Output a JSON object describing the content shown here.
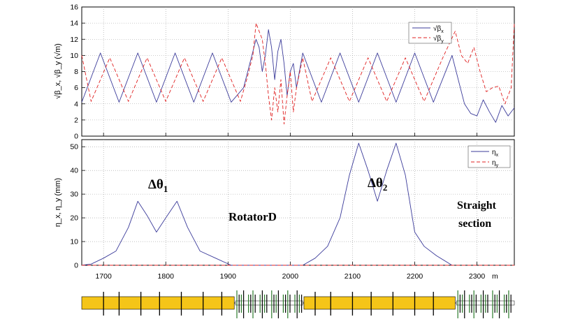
{
  "chart_data": [
    {
      "type": "line",
      "panel": "top",
      "ylabel": "√β_x, √β_y (√m)",
      "xlim": [
        1665,
        2360
      ],
      "ylim": [
        0,
        16
      ],
      "yticks": [
        "0",
        "2",
        "4",
        "6",
        "8",
        "10",
        "12",
        "14",
        "16"
      ],
      "grid": true,
      "legend_position": "top-right",
      "colors": {
        "bx": "#3b3b9a",
        "by": "#e02020"
      },
      "series": [
        {
          "name": "√β_x",
          "key": "bx",
          "style": "solid",
          "x": [
            1665,
            1695,
            1725,
            1755,
            1785,
            1815,
            1845,
            1875,
            1905,
            1925,
            1935,
            1945,
            1950,
            1955,
            1960,
            1965,
            1970,
            1975,
            1980,
            1985,
            1990,
            1995,
            2000,
            2005,
            2010,
            2020,
            2050,
            2080,
            2110,
            2140,
            2170,
            2200,
            2230,
            2260,
            2270,
            2280,
            2290,
            2300,
            2310,
            2320,
            2330,
            2340,
            2350,
            2360
          ],
          "y": [
            4.2,
            10.3,
            4.2,
            10.3,
            4.2,
            10.3,
            4.2,
            10.3,
            4.2,
            6,
            9,
            12,
            11,
            8,
            10,
            13.2,
            11,
            7,
            10.5,
            12,
            9,
            5,
            8,
            9,
            6,
            10.3,
            4.2,
            10.3,
            4.2,
            10.3,
            4.2,
            10.3,
            4.2,
            10,
            7,
            4,
            2.8,
            2.5,
            4.5,
            3,
            1.7,
            3.8,
            2.5,
            3.5
          ]
        },
        {
          "name": "√β_y",
          "key": "by",
          "style": "dashed",
          "x": [
            1665,
            1680,
            1710,
            1740,
            1770,
            1800,
            1830,
            1860,
            1890,
            1920,
            1930,
            1940,
            1945,
            1950,
            1955,
            1960,
            1965,
            1970,
            1975,
            1980,
            1985,
            1990,
            1995,
            2000,
            2005,
            2010,
            2020,
            2035,
            2065,
            2095,
            2125,
            2155,
            2185,
            2215,
            2245,
            2265,
            2275,
            2285,
            2295,
            2305,
            2315,
            2325,
            2335,
            2345,
            2355,
            2360
          ],
          "y": [
            10,
            4.3,
            9.7,
            4.3,
            9.7,
            4.3,
            9.7,
            4.3,
            9.7,
            4.3,
            7,
            10,
            14,
            13,
            12,
            9,
            5,
            2,
            6,
            3,
            7,
            1.5,
            5,
            8,
            3,
            6,
            9.7,
            4.3,
            9.7,
            4.3,
            9.7,
            4.3,
            9.7,
            4.3,
            9.7,
            13,
            10,
            9,
            11,
            8,
            5.5,
            6,
            6.2,
            4,
            6,
            14
          ]
        }
      ]
    },
    {
      "type": "line",
      "panel": "bottom",
      "ylabel": "η_x, η_y (mm)",
      "xlim": [
        1665,
        2360
      ],
      "ylim": [
        0,
        53
      ],
      "yticks": [
        "0",
        "10",
        "20",
        "30",
        "40",
        "50"
      ],
      "xticks": [
        "1700",
        "1800",
        "1900",
        "2000",
        "2100",
        "2200",
        "2300"
      ],
      "xtick_values": [
        1700,
        1800,
        1900,
        2000,
        2100,
        2200,
        2300
      ],
      "x_unit": "m",
      "grid": true,
      "legend_position": "top-right",
      "colors": {
        "etax": "#3b3b9a",
        "etay": "#e02020"
      },
      "series": [
        {
          "name": "η_x",
          "key": "etax",
          "style": "solid",
          "x": [
            1665,
            1680,
            1700,
            1720,
            1740,
            1755,
            1770,
            1785,
            1800,
            1818,
            1835,
            1855,
            1880,
            1905,
            2020,
            2040,
            2060,
            2080,
            2095,
            2110,
            2125,
            2140,
            2155,
            2170,
            2185,
            2200,
            2215,
            2235,
            2260
          ],
          "y": [
            0,
            0.5,
            3,
            6,
            16,
            27,
            21,
            14,
            20,
            27,
            16,
            6,
            3,
            0,
            0,
            3,
            8,
            20,
            38,
            51.5,
            40,
            27,
            40,
            51.5,
            38,
            14,
            8,
            4,
            0
          ]
        },
        {
          "name": "η_y",
          "key": "etay",
          "style": "dashed",
          "x": [
            1665,
            2360
          ],
          "y": [
            0,
            0
          ]
        }
      ]
    }
  ],
  "labels": {
    "legend_bx": "√β",
    "legend_bx_sub": "x",
    "legend_by": "√β",
    "legend_by_sub": "y",
    "legend_etax": "η",
    "legend_etax_sub": "x",
    "legend_etay": "η",
    "legend_etay_sub": "y",
    "ylabel_top": "√β_x, √β_y (√m)",
    "ylabel_bottom": "η_x, η_y (mm)",
    "ann_dtheta1": "Δθ",
    "ann_dtheta1_sub": "1",
    "ann_dtheta2": "Δθ",
    "ann_dtheta2_sub": "2",
    "ann_rotator": "RotatorD",
    "ann_straight_1": "Straight",
    "ann_straight_2": "section",
    "x_unit": "m"
  },
  "lattice": {
    "colors": {
      "dipole": "#f5c518",
      "quad_outline": "#000000",
      "quad_green": "#2a7a2a"
    },
    "dipole_segments": [
      [
        1665,
        1910
      ],
      [
        2022,
        2265
      ]
    ],
    "quad_positions_a": [
      1700,
      1725,
      1760,
      1790,
      1825,
      1860,
      1890
    ],
    "quad_positions_b": [
      2040,
      2065,
      2100,
      2130,
      2165,
      2200,
      2230
    ]
  }
}
